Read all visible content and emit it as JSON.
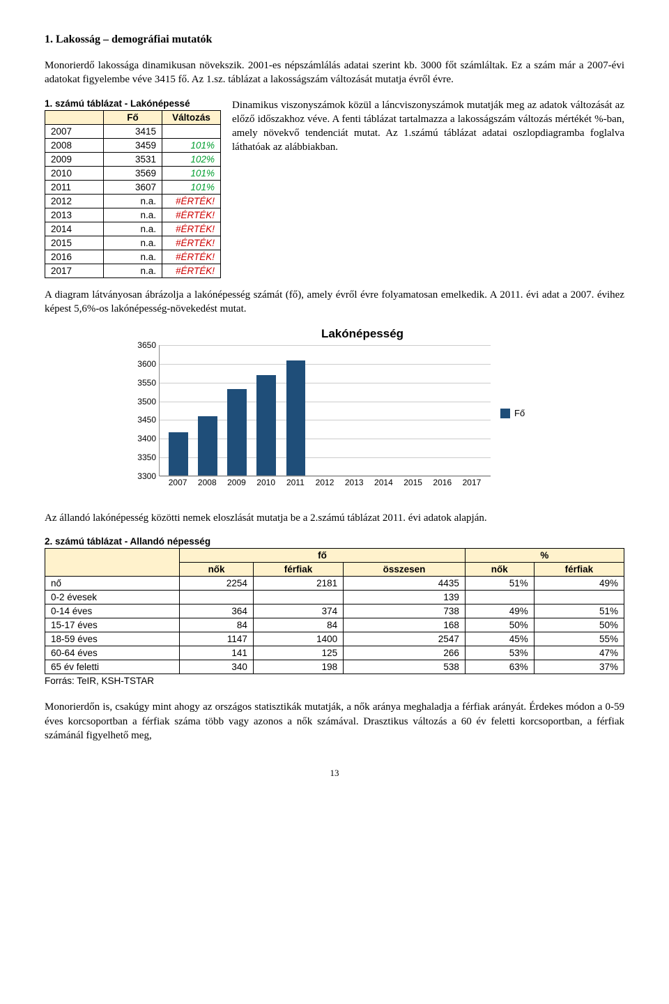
{
  "section": {
    "title": "1.  Lakosság – demográfiai mutatók",
    "intro": "Monorierdő lakossága dinamikusan növekszik. 2001-es népszámlálás adatai szerint kb. 3000 főt számláltak. Ez a szám már a 2007-évi adatokat figyelembe véve 3415 fő. Az 1.sz. táblázat a lakosságszám változását mutatja évről évre.",
    "right_para": "Dinamikus viszonyszámok közül a láncviszonyszámok mutatják meg az adatok változását az előző időszakhoz véve. A fenti táblázat tartalmazza a lakosságszám változás mértékét %-ban, amely növekvő tendenciát mutat. Az 1.számú táblázat adatai oszlopdiagramba foglalva láthatóak az alábbiakban.",
    "mid_para": "A diagram látványosan ábrázolja a lakónépesség számát (fő), amely évről évre folyamatosan emelkedik. A 2011. évi adat a 2007. évihez képest 5,6%-os lakónépesség-növekedést mutat.",
    "para_tbl2_intro": "Az állandó lakónépesség közötti nemek eloszlását mutatja be a 2.számú táblázat 2011. évi adatok alapján.",
    "closing": "Monorierdőn is, csakúgy mint ahogy az országos statisztikák mutatják, a nők aránya meghaladja a férfiak arányát. Érdekes módon a 0-59 éves korcsoportban a férfiak száma több vagy azonos a nők számával. Drasztikus változás a 60 év feletti korcsoportban, a férfiak számánál figyelhető meg,",
    "page_number": "13"
  },
  "table1": {
    "title": "1. számú táblázat - Lakónépessé",
    "headers": [
      "",
      "Fő",
      "Változás"
    ],
    "header_bg": "#fff2cc",
    "rows": [
      {
        "year": "2007",
        "fo": "3415",
        "valt": ""
      },
      {
        "year": "2008",
        "fo": "3459",
        "valt": "101%",
        "green": true
      },
      {
        "year": "2009",
        "fo": "3531",
        "valt": "102%",
        "green": true
      },
      {
        "year": "2010",
        "fo": "3569",
        "valt": "101%",
        "green": true
      },
      {
        "year": "2011",
        "fo": "3607",
        "valt": "101%",
        "green": true
      },
      {
        "year": "2012",
        "fo": "n.a.",
        "valt": "#ÉRTÉK!",
        "err": true
      },
      {
        "year": "2013",
        "fo": "n.a.",
        "valt": "#ÉRTÉK!",
        "err": true
      },
      {
        "year": "2014",
        "fo": "n.a.",
        "valt": "#ÉRTÉK!",
        "err": true
      },
      {
        "year": "2015",
        "fo": "n.a.",
        "valt": "#ÉRTÉK!",
        "err": true
      },
      {
        "year": "2016",
        "fo": "n.a.",
        "valt": "#ÉRTÉK!",
        "err": true
      },
      {
        "year": "2017",
        "fo": "n.a.",
        "valt": "#ÉRTÉK!",
        "err": true
      }
    ]
  },
  "chart": {
    "title": "Lakónépesség",
    "type": "bar",
    "categories": [
      "2007",
      "2008",
      "2009",
      "2010",
      "2011",
      "2012",
      "2013",
      "2014",
      "2015",
      "2016",
      "2017"
    ],
    "values": [
      3415,
      3459,
      3531,
      3569,
      3607,
      null,
      null,
      null,
      null,
      null,
      null
    ],
    "bar_color": "#1f4e79",
    "background_color": "#ffffff",
    "grid_color": "#cccccc",
    "axis_color": "#888888",
    "label_fontsize": 12,
    "title_fontsize": 17,
    "ylim": [
      3300,
      3650
    ],
    "ytick_step": 50,
    "legend_label": "Fő",
    "legend_swatch_color": "#1f4e79",
    "bar_width": 0.66
  },
  "table2": {
    "title": "2. számú táblázat - Allandó népesség",
    "header_bg": "#fff2cc",
    "top_headers": [
      "",
      "fő",
      "",
      "",
      "%",
      ""
    ],
    "sub_headers": [
      "",
      "nők",
      "férfiak",
      "összesen",
      "nők",
      "férfiak"
    ],
    "rows": [
      {
        "label": "nő",
        "c": [
          "2254",
          "2181",
          "4435",
          "51%",
          "49%"
        ]
      },
      {
        "label": "0-2 évesek",
        "c": [
          "",
          "",
          "139",
          "",
          ""
        ]
      },
      {
        "label": "0-14 éves",
        "c": [
          "364",
          "374",
          "738",
          "49%",
          "51%"
        ]
      },
      {
        "label": "15-17 éves",
        "c": [
          "84",
          "84",
          "168",
          "50%",
          "50%"
        ]
      },
      {
        "label": "18-59 éves",
        "c": [
          "1147",
          "1400",
          "2547",
          "45%",
          "55%"
        ]
      },
      {
        "label": "60-64 éves",
        "c": [
          "141",
          "125",
          "266",
          "53%",
          "47%"
        ]
      },
      {
        "label": "65 év feletti",
        "c": [
          "340",
          "198",
          "538",
          "63%",
          "37%"
        ]
      }
    ],
    "source": "Forrás: TeIR, KSH-TSTAR"
  }
}
